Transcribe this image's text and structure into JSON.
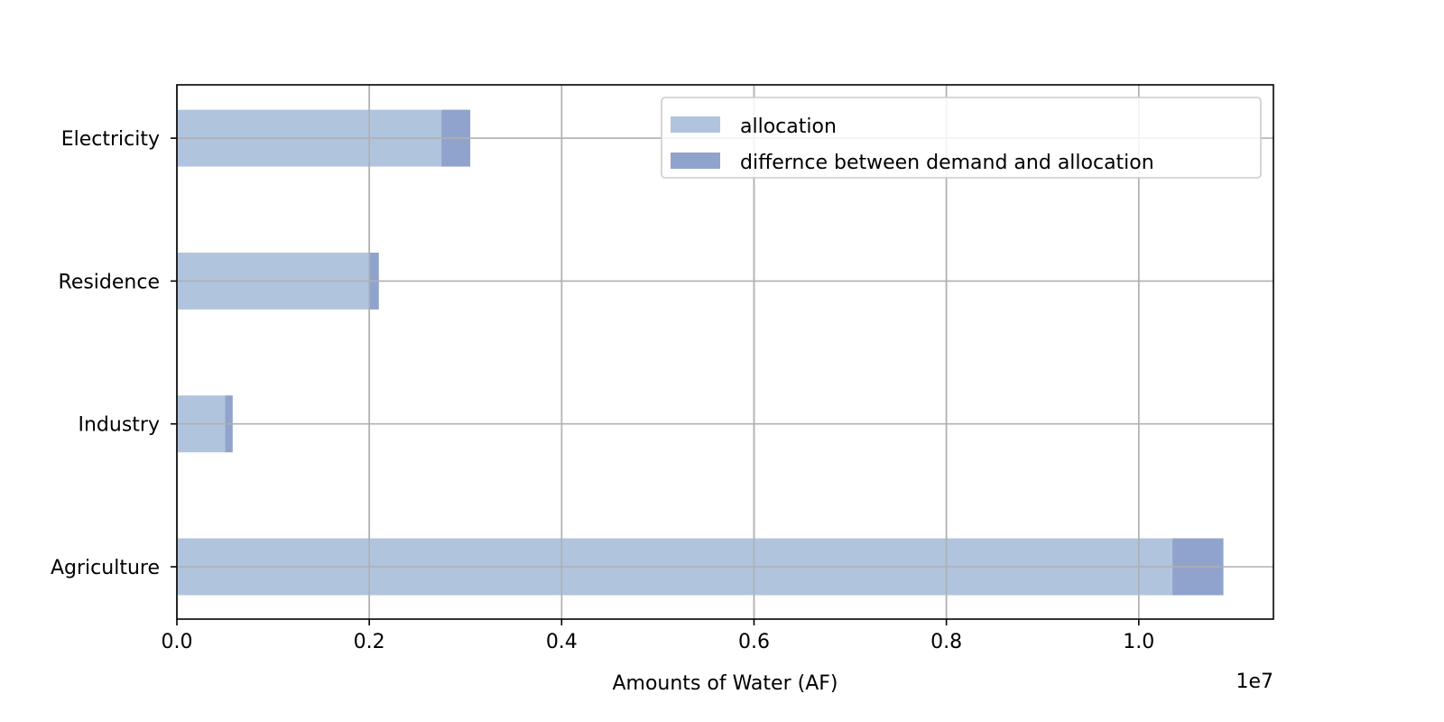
{
  "chart_data": {
    "type": "bar",
    "orientation": "horizontal",
    "stacked": true,
    "categories": [
      "Agriculture",
      "Industry",
      "Residence",
      "Electricity"
    ],
    "series": [
      {
        "name": "allocation",
        "values": [
          10350000,
          500000,
          2000000,
          2750000
        ],
        "color": "#b0c4de"
      },
      {
        "name": "differnce between demand and allocation",
        "values": [
          530000,
          80000,
          100000,
          300000
        ],
        "color": "#8fa3cc"
      }
    ],
    "xlabel": "Amounts of Water (AF)",
    "xlim": [
      0,
      11400000
    ],
    "x_ticks": [
      0,
      2000000,
      4000000,
      6000000,
      8000000,
      10000000
    ],
    "x_tick_labels": [
      "0.0",
      "0.2",
      "0.4",
      "0.6",
      "0.8",
      "1.0"
    ],
    "x_offset_label": "1e7",
    "grid": true,
    "legend_position": "top-right"
  }
}
